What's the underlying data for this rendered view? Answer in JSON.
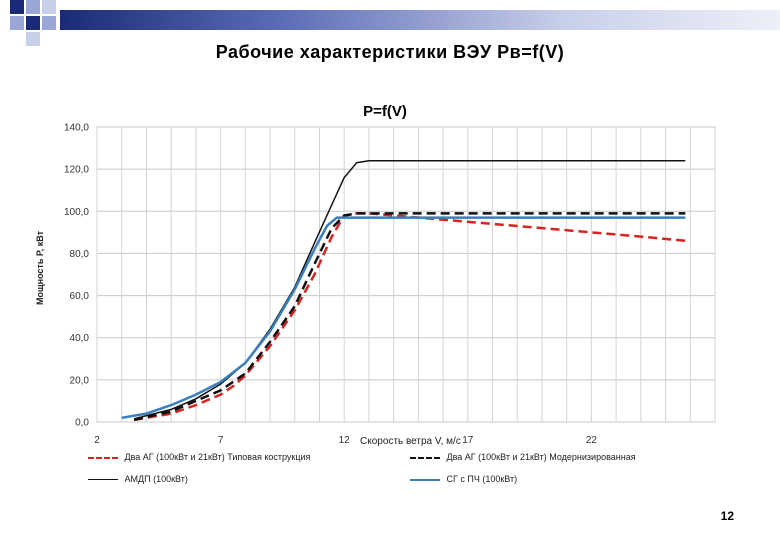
{
  "slide": {
    "title": "Рабочие характеристики ВЭУ Pв=f(V)",
    "page_number": "12"
  },
  "chart_data": {
    "type": "line",
    "title": "P=f(V)",
    "xlabel": "Скорость ветра V, м/с",
    "ylabel": "Мощность P, кВт",
    "xlim": [
      2,
      27
    ],
    "ylim": [
      0,
      140
    ],
    "xticks": [
      "2",
      "7",
      "12",
      "17",
      "22"
    ],
    "yticks": [
      "0,0",
      "20,0",
      "40,0",
      "60,0",
      "80,0",
      "100,0",
      "120,0",
      "140,0"
    ],
    "grid": true,
    "legend_position": "bottom",
    "series": [
      {
        "name": "Два АГ (100кВт и 21кВт) Типовая кострукция",
        "color": "#d9231f",
        "style": "dashed",
        "width": 2.5,
        "points": [
          [
            3.5,
            1
          ],
          [
            5,
            4
          ],
          [
            6,
            8
          ],
          [
            7,
            13
          ],
          [
            7.5,
            17
          ],
          [
            8,
            22
          ],
          [
            9,
            36
          ],
          [
            10,
            53
          ],
          [
            10.8,
            70
          ],
          [
            11.5,
            88
          ],
          [
            12,
            98
          ],
          [
            12.5,
            99
          ],
          [
            13,
            99
          ],
          [
            14,
            98
          ],
          [
            16,
            96
          ],
          [
            18,
            94
          ],
          [
            20,
            92
          ],
          [
            22,
            90
          ],
          [
            24,
            88
          ],
          [
            25.8,
            86
          ]
        ]
      },
      {
        "name": "Два АГ (100кВт и 21кВт) Модернизированная",
        "color": "#111111",
        "style": "dashed",
        "width": 2.5,
        "points": [
          [
            3.5,
            1
          ],
          [
            5,
            5
          ],
          [
            6,
            10
          ],
          [
            7,
            15
          ],
          [
            8,
            23
          ],
          [
            9,
            38
          ],
          [
            10,
            55
          ],
          [
            10.8,
            75
          ],
          [
            11.5,
            92
          ],
          [
            12,
            98
          ],
          [
            12.5,
            99
          ],
          [
            14,
            99
          ],
          [
            17,
            99
          ],
          [
            20,
            99
          ],
          [
            23,
            99
          ],
          [
            25.8,
            99
          ]
        ]
      },
      {
        "name": "АМДП (100кВт)",
        "color": "#111111",
        "style": "solid",
        "width": 1.5,
        "points": [
          [
            3.5,
            1.5
          ],
          [
            5,
            6
          ],
          [
            6,
            11
          ],
          [
            7,
            18
          ],
          [
            8,
            28
          ],
          [
            9,
            44
          ],
          [
            10,
            64
          ],
          [
            10.8,
            85
          ],
          [
            11.3,
            98
          ],
          [
            12,
            116
          ],
          [
            12.5,
            123
          ],
          [
            13,
            124
          ],
          [
            14,
            124
          ],
          [
            17,
            124
          ],
          [
            20,
            124
          ],
          [
            23,
            124
          ],
          [
            25.8,
            124
          ]
        ]
      },
      {
        "name": "СГ с ПЧ (100кВт)",
        "color": "#3a7fbd",
        "style": "solid",
        "width": 2.5,
        "points": [
          [
            3,
            2
          ],
          [
            4,
            4
          ],
          [
            5,
            8
          ],
          [
            6,
            13
          ],
          [
            7,
            19
          ],
          [
            8,
            28
          ],
          [
            9,
            43
          ],
          [
            10,
            63
          ],
          [
            10.8,
            82
          ],
          [
            11.3,
            93
          ],
          [
            11.7,
            97
          ],
          [
            12,
            97
          ],
          [
            14,
            97
          ],
          [
            17,
            97
          ],
          [
            20,
            97
          ],
          [
            23,
            97
          ],
          [
            25.8,
            97
          ]
        ]
      }
    ]
  }
}
